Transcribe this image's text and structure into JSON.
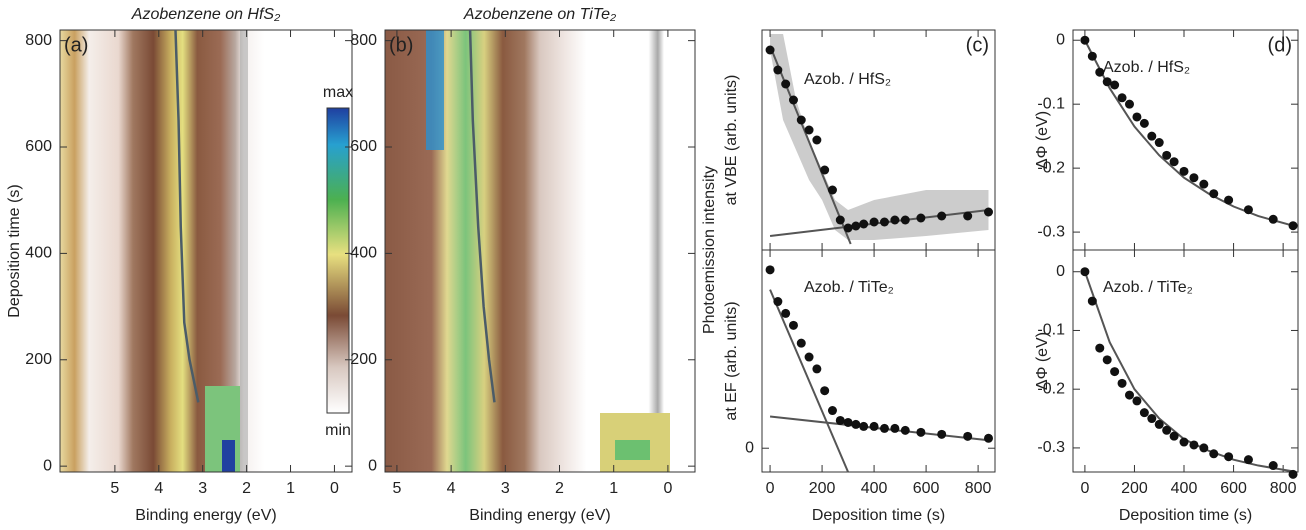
{
  "chart_data": [
    {
      "type": "heatmap",
      "title": "Azobenzene on HfS₂",
      "panel_label": "(a)",
      "xlabel": "Binding energy (eV)",
      "ylabel": "Deposition time (s)",
      "xlim": [
        6.25,
        -0.4
      ],
      "xticks": [
        5,
        4,
        3,
        2,
        1,
        0
      ],
      "ylim": [
        -11,
        820
      ],
      "yticks": [
        0,
        200,
        400,
        600,
        800
      ],
      "colorbar": {
        "max_label": "max",
        "min_label": "min"
      },
      "series": [
        {
          "color": "#4b5c68",
          "x": [
            3.1,
            3.3,
            3.42,
            3.5,
            3.55,
            3.62
          ],
          "values": [
            120,
            200,
            270,
            450,
            650,
            820
          ]
        }
      ]
    },
    {
      "type": "heatmap",
      "title": "Azobenzene on TiTe₂",
      "panel_label": "(b)",
      "xlabel": "Binding energy (eV)",
      "xlim": [
        5.22,
        -0.5
      ],
      "xticks": [
        5,
        4,
        3,
        2,
        1,
        0
      ],
      "ylim": [
        -11,
        820
      ],
      "yticks": [
        0,
        200,
        400,
        600,
        800
      ],
      "series": [
        {
          "color": "#4b5c68",
          "x": [
            3.2,
            3.3,
            3.4,
            3.5,
            3.6,
            3.65
          ],
          "values": [
            120,
            200,
            300,
            450,
            650,
            820
          ]
        }
      ]
    },
    {
      "type": "scatter",
      "panel_label": "(c)",
      "annotation": "Azob. / HfS₂",
      "ylabel_main": "Photoemission intensity",
      "ylabel": "at VBE (arb. units)",
      "xlim": [
        -31,
        865
      ],
      "xticks": [
        0,
        200,
        400,
        600,
        800
      ],
      "ylim": [
        -0.05,
        1.05
      ],
      "color": "#111111",
      "fit_color": "#555555",
      "band_color": "#cccccc",
      "x": [
        0,
        30,
        60,
        90,
        120,
        150,
        180,
        210,
        240,
        270,
        300,
        330,
        360,
        400,
        440,
        480,
        520,
        580,
        660,
        760,
        840
      ],
      "values": [
        0.95,
        0.85,
        0.78,
        0.7,
        0.6,
        0.55,
        0.5,
        0.35,
        0.25,
        0.1,
        0.06,
        0.07,
        0.08,
        0.09,
        0.09,
        0.1,
        0.1,
        0.11,
        0.12,
        0.12,
        0.14
      ],
      "fits": [
        {
          "x": [
            0,
            310
          ],
          "values": [
            0.97,
            -0.02
          ]
        },
        {
          "x": [
            0,
            840
          ],
          "values": [
            0.02,
            0.15
          ]
        }
      ],
      "band": {
        "x": [
          0,
          50,
          100,
          150,
          200,
          250,
          300,
          400,
          600,
          840
        ],
        "upper": [
          1.03,
          1.03,
          0.7,
          0.5,
          0.35,
          0.2,
          0.15,
          0.2,
          0.25,
          0.25
        ],
        "lower": [
          0.95,
          0.6,
          0.45,
          0.3,
          0.2,
          0.05,
          0.0,
          0.0,
          0.02,
          0.05
        ]
      }
    },
    {
      "type": "scatter",
      "annotation": "Azob. / TiTe₂",
      "ylabel": "at EF (arb. units)",
      "xlabel": "Deposition time (s)",
      "xlim": [
        -31,
        865
      ],
      "xticks": [
        0,
        200,
        400,
        600,
        800
      ],
      "ylim": [
        -0.12,
        1.0
      ],
      "yticks": [
        0
      ],
      "color": "#111111",
      "fit_color": "#555555",
      "x": [
        0,
        30,
        60,
        90,
        120,
        150,
        180,
        210,
        240,
        270,
        300,
        330,
        360,
        400,
        440,
        480,
        520,
        580,
        660,
        760,
        840
      ],
      "values": [
        0.9,
        0.74,
        0.68,
        0.62,
        0.53,
        0.46,
        0.4,
        0.29,
        0.19,
        0.14,
        0.13,
        0.12,
        0.11,
        0.11,
        0.1,
        0.1,
        0.09,
        0.08,
        0.07,
        0.06,
        0.05
      ],
      "fits": [
        {
          "x": [
            0,
            300
          ],
          "values": [
            0.8,
            -0.12
          ]
        },
        {
          "x": [
            0,
            840
          ],
          "values": [
            0.16,
            0.04
          ]
        }
      ]
    },
    {
      "type": "scatter",
      "panel_label": "(d)",
      "annotation": "Azob. / HfS₂",
      "ylabel": "ΔΦ (eV)",
      "xlim": [
        -48,
        860
      ],
      "xticks": [
        0,
        200,
        400,
        600,
        800
      ],
      "ylim": [
        -0.328,
        0.016
      ],
      "yticks": [
        0,
        -0.1,
        -0.2,
        -0.3
      ],
      "color": "#111111",
      "fit_color": "#555555",
      "x": [
        0,
        30,
        60,
        90,
        120,
        150,
        180,
        210,
        240,
        270,
        300,
        330,
        360,
        400,
        440,
        480,
        520,
        580,
        660,
        760,
        840
      ],
      "values": [
        0,
        -0.025,
        -0.05,
        -0.065,
        -0.07,
        -0.09,
        -0.1,
        -0.12,
        -0.13,
        -0.15,
        -0.16,
        -0.18,
        -0.19,
        -0.205,
        -0.215,
        -0.225,
        -0.24,
        -0.25,
        -0.265,
        -0.28,
        -0.29
      ],
      "fits": [
        {
          "x": [
            0,
            100,
            200,
            300,
            400,
            500,
            600,
            700,
            840
          ],
          "values": [
            0,
            -0.075,
            -0.135,
            -0.18,
            -0.215,
            -0.24,
            -0.26,
            -0.275,
            -0.29
          ]
        }
      ]
    },
    {
      "type": "scatter",
      "annotation": "Azob. / TiTe₂",
      "ylabel": "ΔΦ (eV)",
      "xlabel": "Deposition time (s)",
      "xlim": [
        -48,
        860
      ],
      "xticks": [
        0,
        200,
        400,
        600,
        800
      ],
      "ylim": [
        -0.341,
        0.037
      ],
      "yticks": [
        0,
        -0.1,
        -0.2,
        -0.3
      ],
      "color": "#111111",
      "fit_color": "#555555",
      "x": [
        0,
        30,
        60,
        90,
        120,
        150,
        180,
        210,
        240,
        270,
        300,
        330,
        360,
        400,
        440,
        480,
        520,
        580,
        660,
        760,
        840
      ],
      "values": [
        0,
        -0.05,
        -0.13,
        -0.15,
        -0.17,
        -0.19,
        -0.21,
        -0.22,
        -0.24,
        -0.25,
        -0.26,
        -0.27,
        -0.28,
        -0.29,
        -0.295,
        -0.3,
        -0.31,
        -0.315,
        -0.32,
        -0.33,
        -0.345
      ],
      "fits": [
        {
          "x": [
            0,
            100,
            200,
            300,
            400,
            500,
            600,
            700,
            840
          ],
          "values": [
            0,
            -0.12,
            -0.2,
            -0.25,
            -0.285,
            -0.305,
            -0.32,
            -0.33,
            -0.34
          ]
        }
      ]
    }
  ]
}
